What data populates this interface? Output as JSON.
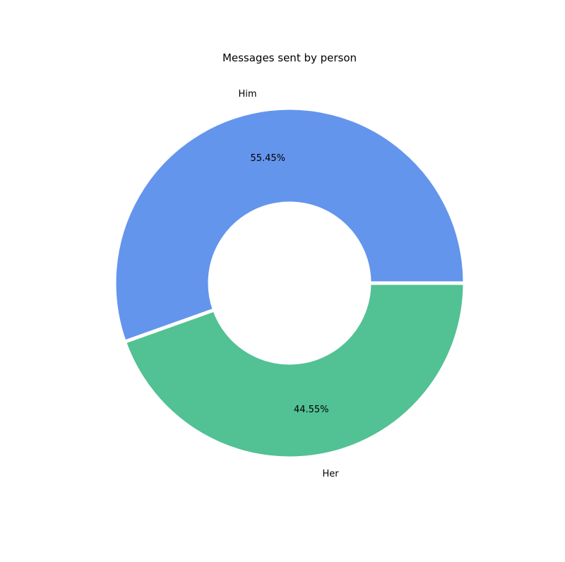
{
  "chart_data": {
    "type": "pie",
    "title": "Messages sent by person",
    "donut": true,
    "start_angle_deg": 0,
    "direction": "counterclockwise",
    "slices": [
      {
        "label": "Him",
        "value": 55.45,
        "pct_label": "55.45%",
        "color": "#6495ED"
      },
      {
        "label": "Her",
        "value": 44.55,
        "pct_label": "44.55%",
        "color": "#52C193"
      }
    ],
    "edge_color": "#ffffff"
  }
}
